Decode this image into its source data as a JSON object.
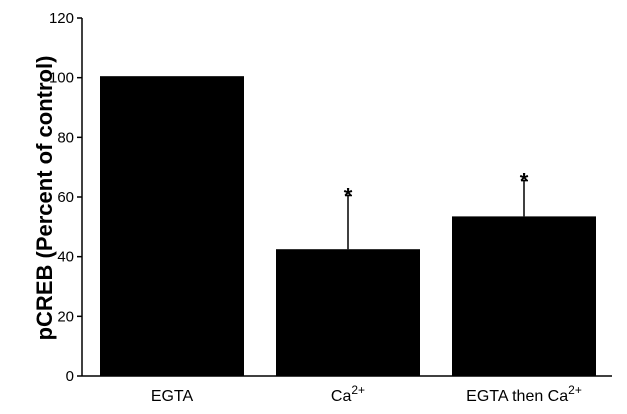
{
  "chart_data": {
    "type": "bar",
    "categories": [
      {
        "base": "EGTA",
        "sup": ""
      },
      {
        "base": "Ca",
        "sup": "2+"
      },
      {
        "base": "EGTA then Ca",
        "sup": "2+"
      }
    ],
    "values": [
      100.5,
      42.5,
      53.5
    ],
    "error_plus": [
      0,
      18,
      12
    ],
    "significance": [
      "",
      "*",
      "*"
    ],
    "ylabel": "pCREB (Percent of control)",
    "ylim": [
      0,
      120
    ],
    "yticks": [
      0,
      20,
      40,
      60,
      80,
      100,
      120
    ],
    "bar_color": "#000000",
    "grid": false
  }
}
